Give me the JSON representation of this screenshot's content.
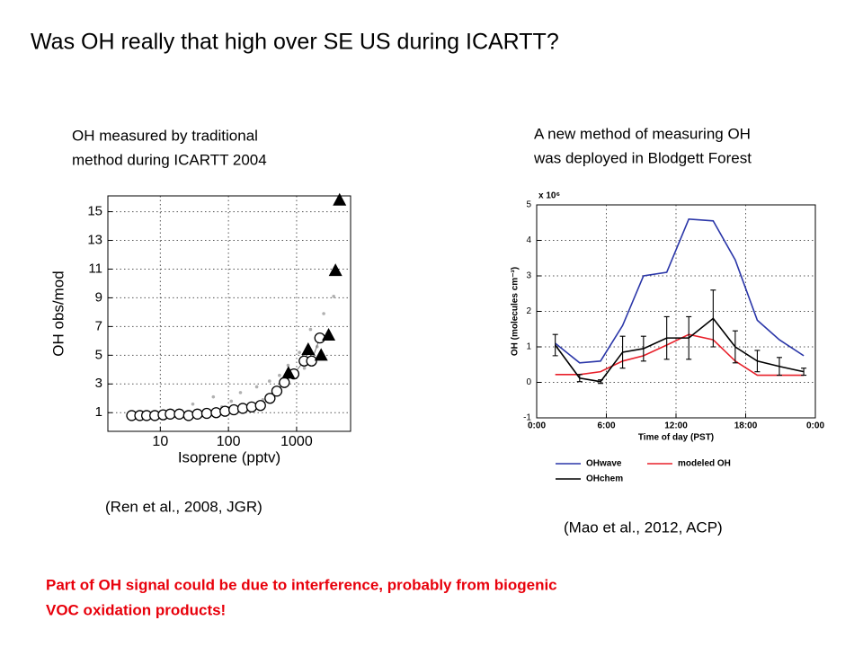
{
  "title": "Was OH really that high over SE US during ICARTT?",
  "left_caption": [
    "OH measured by traditional",
    "method during ICARTT 2004"
  ],
  "right_caption": [
    "A new method of measuring OH",
    "was deployed in Blodgett Forest"
  ],
  "left_citation": "(Ren et al., 2008, JGR)",
  "right_citation": "(Mao et al., 2012, ACP)",
  "conclusion": [
    "Part of OH signal could be due to interference, probably from biogenic",
    "VOC oxidation products!"
  ],
  "chart_data": [
    {
      "type": "scatter",
      "xlabel": "Isoprene (pptv)",
      "ylabel": "OH obs/mod",
      "xscale": "log",
      "xlim": [
        1.7,
        6200
      ],
      "ylim": [
        -0.3,
        16.1
      ],
      "xticks": [
        10,
        100,
        1000
      ],
      "yticks": [
        1,
        3,
        5,
        7,
        9,
        11,
        13,
        15
      ],
      "grid": true,
      "series": [
        {
          "color": "#b0b0b0",
          "marker": "dot",
          "x": [
            30,
            45,
            60,
            80,
            110,
            150,
            200,
            260,
            320,
            400,
            480,
            560,
            650,
            750,
            900,
            1100,
            1300,
            1600,
            2000,
            2500,
            3000,
            3500
          ],
          "values": [
            1.6,
            1.2,
            2.1,
            1.4,
            1.8,
            2.4,
            1.3,
            2.8,
            1.9,
            3.2,
            2.5,
            3.6,
            2.9,
            4.3,
            3.5,
            5.2,
            4.1,
            6.8,
            5.6,
            7.9,
            6.5,
            9.1
          ]
        },
        {
          "color": "#000000",
          "marker": "circle",
          "connect": true,
          "x": [
            3.8,
            5,
            6.3,
            8.3,
            11,
            14,
            19,
            26,
            35,
            48,
            66,
            89,
            120,
            162,
            219,
            295,
            407,
            513,
            661,
            912,
            1290,
            1660,
            2190
          ],
          "values": [
            0.8,
            0.8,
            0.8,
            0.8,
            0.85,
            0.9,
            0.9,
            0.8,
            0.9,
            0.95,
            1.0,
            1.1,
            1.2,
            1.3,
            1.4,
            1.5,
            2.0,
            2.5,
            3.1,
            3.7,
            4.6,
            4.6,
            6.2
          ]
        },
        {
          "color": "#000000",
          "marker": "triangle",
          "x": [
            759,
            1480,
            2290,
            2950,
            3720,
            4270
          ],
          "values": [
            3.75,
            5.4,
            5.0,
            6.4,
            10.9,
            15.8
          ]
        }
      ]
    },
    {
      "type": "line",
      "xlabel": "Time of day (PST)",
      "ylabel": "OH  (molecules cm⁻³)",
      "multiplier": "x 10⁶",
      "xlim": [
        0,
        24
      ],
      "ylim": [
        -1,
        5
      ],
      "xticks": [
        {
          "value": 0,
          "label": "0:00"
        },
        {
          "value": 6,
          "label": "6:00"
        },
        {
          "value": 12,
          "label": "12:00"
        },
        {
          "value": 18,
          "label": "18:00"
        },
        {
          "value": 24,
          "label": "0:00"
        }
      ],
      "yticks": [
        -1,
        0,
        1,
        2,
        3,
        4,
        5
      ],
      "grid": true,
      "x": [
        1.6,
        3.7,
        5.5,
        7.4,
        9.2,
        11.2,
        13.1,
        15.2,
        17.1,
        19.0,
        20.9,
        23.0
      ],
      "series": [
        {
          "name": "OHwave",
          "color": "#2a36a8",
          "values": [
            1.1,
            0.55,
            0.6,
            1.6,
            3.0,
            3.1,
            4.6,
            4.55,
            3.45,
            1.75,
            1.2,
            0.75
          ]
        },
        {
          "name": "modeled OH",
          "color": "#e8202a",
          "values": [
            0.22,
            0.22,
            0.3,
            0.6,
            0.75,
            1.05,
            1.35,
            1.2,
            0.6,
            0.2,
            0.2,
            0.2
          ]
        },
        {
          "name": "OHchem",
          "color": "#000000",
          "values": [
            1.05,
            0.12,
            0.02,
            0.85,
            0.95,
            1.25,
            1.25,
            1.8,
            1.0,
            0.6,
            0.45,
            0.3
          ],
          "errors": [
            0.3,
            0.1,
            0.05,
            0.45,
            0.35,
            0.6,
            0.6,
            0.8,
            0.45,
            0.3,
            0.25,
            0.1
          ]
        }
      ]
    }
  ]
}
